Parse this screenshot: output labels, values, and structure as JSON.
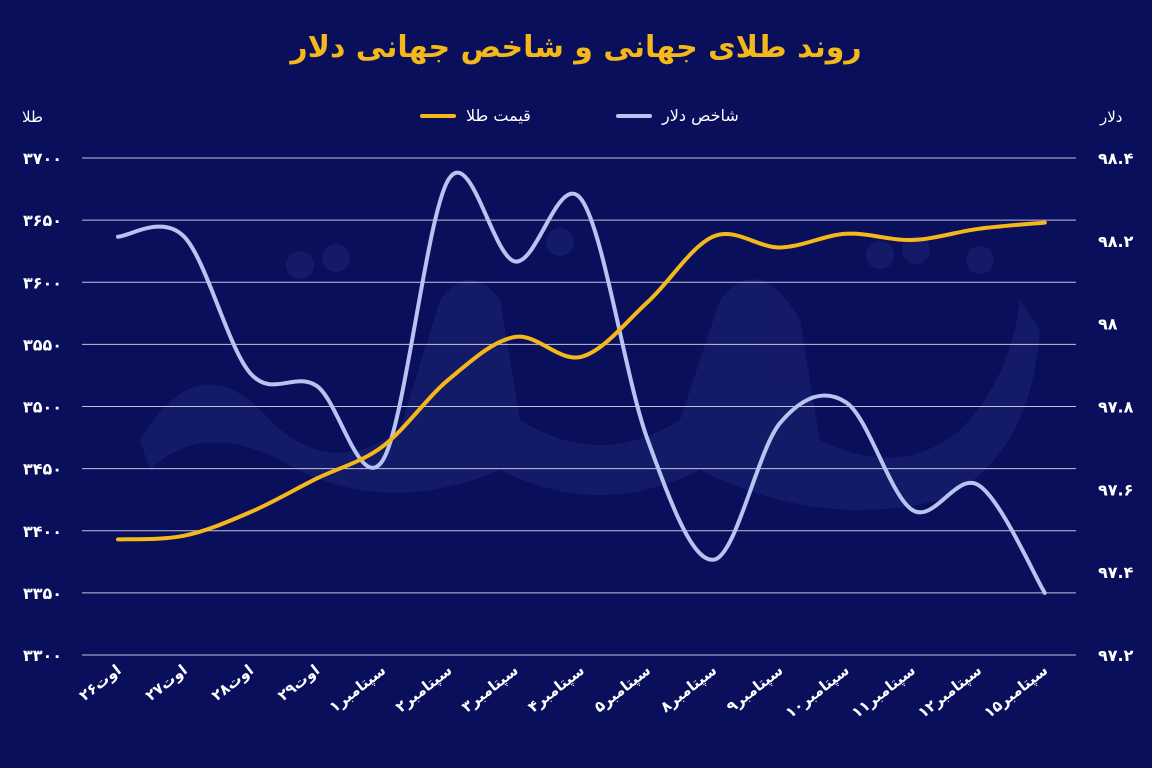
{
  "chart_data": {
    "type": "line",
    "title": "روند طلای جهانی و شاخص جهانی دلار",
    "left_axis_unit": "طلا",
    "right_axis_unit": "دلار",
    "categories": [
      "۲۶اوت",
      "۲۷اوت",
      "۲۸اوت",
      "۲۹اوت",
      "۱سپتامبر",
      "۲سپتامبر",
      "۳سپتامبر",
      "۴سپتامبر",
      "۵سپتامبر",
      "۸سپتامبر",
      "۹سپتامبر",
      "۱۰سپتامبر",
      "۱۱سپتامبر",
      "۱۲سپتامبر",
      "۱۵سپتامبر"
    ],
    "left_ticks": [
      "۳۷۰۰",
      "۳۶۵۰",
      "۳۶۰۰",
      "۳۵۵۰",
      "۳۵۰۰",
      "۳۴۵۰",
      "۳۴۰۰",
      "۳۳۵۰",
      "۳۳۰۰"
    ],
    "right_ticks": [
      "۹۸.۴",
      "۹۸.۲",
      "۹۸",
      "۹۷.۸",
      "۹۷.۶",
      "۹۷.۴",
      "۹۷.۲"
    ],
    "left_ylim": [
      3300,
      3700
    ],
    "right_ylim": [
      97.2,
      98.4
    ],
    "grid": true,
    "series": [
      {
        "name": "قیمت طلا",
        "axis": "left",
        "color": "#f5b81a",
        "values": [
          3393,
          3396,
          3415,
          3442,
          3468,
          3522,
          3556,
          3540,
          3584,
          3637,
          3628,
          3639,
          3634,
          3643,
          3648
        ]
      },
      {
        "name": "شاخص دلار",
        "axis": "right",
        "color": "#b7c3f0",
        "values": [
          98.21,
          98.21,
          97.88,
          97.85,
          97.67,
          98.35,
          98.15,
          98.3,
          97.72,
          97.43,
          97.76,
          97.81,
          97.55,
          97.61,
          97.35
        ]
      }
    ]
  }
}
